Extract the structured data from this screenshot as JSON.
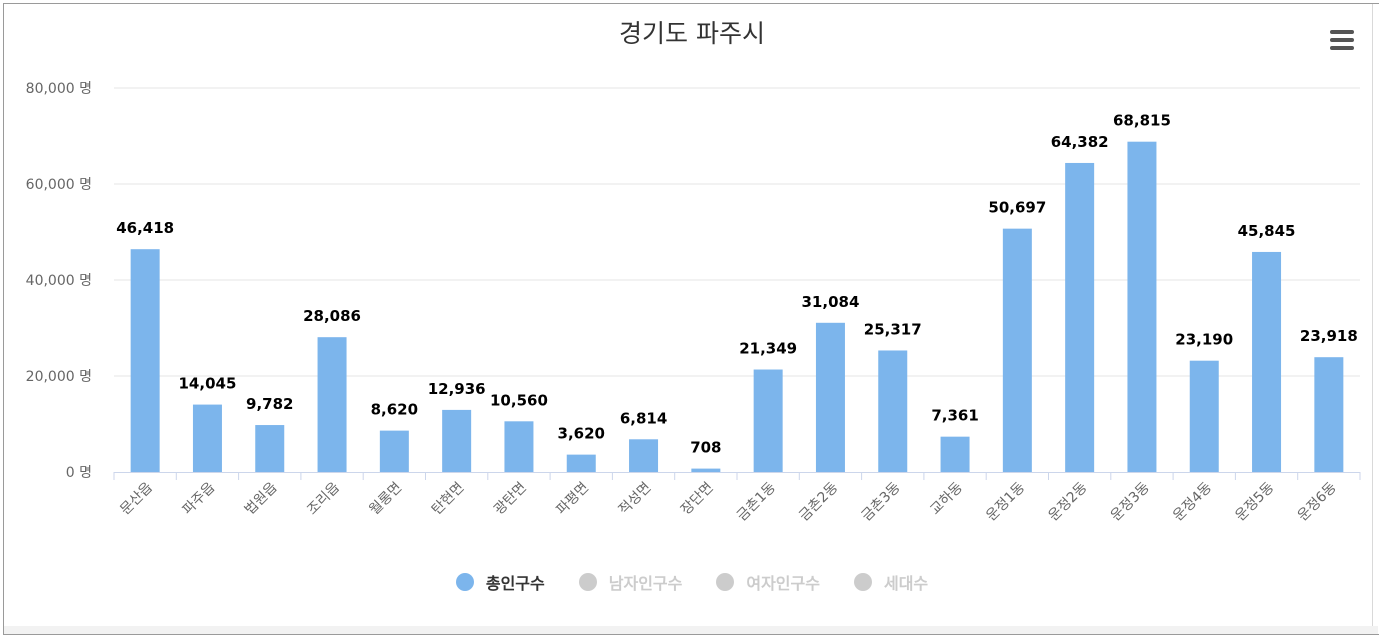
{
  "colors": {
    "bar": "#7cb5ec",
    "legend_active_text": "#333333",
    "legend_inactive": "#cccccc",
    "grid": "#e6e6e6",
    "axis_text": "#666666"
  },
  "toolbar": {
    "menu_icon": "hamburger-menu-icon"
  },
  "legend": {
    "items": [
      {
        "label": "총인구수",
        "active": true
      },
      {
        "label": "남자인구수",
        "active": false
      },
      {
        "label": "여자인구수",
        "active": false
      },
      {
        "label": "세대수",
        "active": false
      }
    ]
  },
  "chart_data": {
    "type": "bar",
    "title": "경기도 파주시",
    "xlabel": "",
    "ylabel": "",
    "ylim": [
      0,
      80000
    ],
    "yticks": [
      0,
      20000,
      40000,
      60000,
      80000
    ],
    "ytick_labels": [
      "0 명",
      "20,000 명",
      "40,000 명",
      "60,000 명",
      "80,000 명"
    ],
    "grid": true,
    "legend_position": "bottom-center",
    "categories": [
      "문산읍",
      "파주읍",
      "법원읍",
      "조리읍",
      "월롱면",
      "탄현면",
      "광탄면",
      "파평면",
      "적성면",
      "장단면",
      "금촌1동",
      "금촌2동",
      "금촌3동",
      "교하동",
      "운정1동",
      "운정2동",
      "운정3동",
      "운정4동",
      "운정5동",
      "운정6동"
    ],
    "series": [
      {
        "name": "총인구수",
        "values": [
          46418,
          14045,
          9782,
          28086,
          8620,
          12936,
          10560,
          3620,
          6814,
          708,
          21349,
          31084,
          25317,
          7361,
          50697,
          64382,
          68815,
          23190,
          45845,
          23918
        ],
        "value_labels": [
          "46,418",
          "14,045",
          "9,782",
          "28,086",
          "8,620",
          "12,936",
          "10,560",
          "3,620",
          "6,814",
          "708",
          "21,349",
          "31,084",
          "25,317",
          "7,361",
          "50,697",
          "64,382",
          "68,815",
          "23,190",
          "45,845",
          "23,918"
        ]
      }
    ]
  }
}
